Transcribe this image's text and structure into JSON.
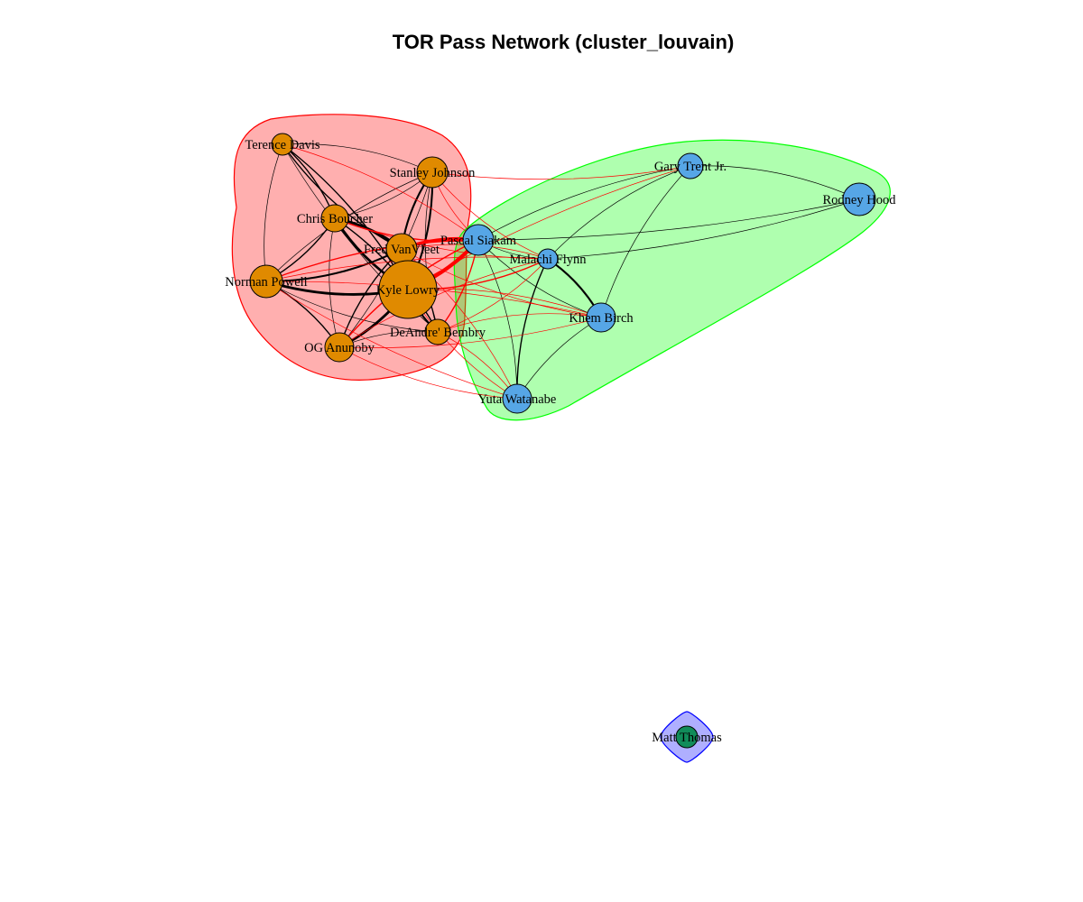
{
  "title": "TOR Pass Network (cluster_louvain)",
  "colors": {
    "group_fills": [
      "#FF000050",
      "#00FF0050",
      "#0000FF50"
    ],
    "group_borders": [
      "#FF0000",
      "#00FF00",
      "#0000FF"
    ],
    "node_fills": [
      "#E08A00",
      "#56A6E6",
      "#118C5A"
    ],
    "within_edge": "#000000",
    "cross_edge": "#FF0000"
  },
  "nodes": [
    {
      "id": "davis",
      "label": "Terence Davis",
      "group": 0
    },
    {
      "id": "johnson",
      "label": "Stanley Johnson",
      "group": 0
    },
    {
      "id": "boucher",
      "label": "Chris Boucher",
      "group": 0
    },
    {
      "id": "vanvleet",
      "label": "Fred VanVleet",
      "group": 0
    },
    {
      "id": "powell",
      "label": "Norman Powell",
      "group": 0
    },
    {
      "id": "lowry",
      "label": "Kyle Lowry",
      "group": 0
    },
    {
      "id": "anunoby",
      "label": "OG Anunoby",
      "group": 0
    },
    {
      "id": "bembry",
      "label": "DeAndre' Bembry",
      "group": 0
    },
    {
      "id": "siakam",
      "label": "Pascal Siakam",
      "group": 1
    },
    {
      "id": "flynn",
      "label": "Malachi Flynn",
      "group": 1
    },
    {
      "id": "trent",
      "label": "Gary Trent Jr.",
      "group": 1
    },
    {
      "id": "hood",
      "label": "Rodney Hood",
      "group": 1
    },
    {
      "id": "birch",
      "label": "Khem Birch",
      "group": 1
    },
    {
      "id": "watanabe",
      "label": "Yuta Watanabe",
      "group": 1
    },
    {
      "id": "thomas",
      "label": "Matt Thomas",
      "group": 2
    }
  ],
  "edges": [
    [
      "davis",
      "boucher",
      2
    ],
    [
      "davis",
      "vanvleet",
      2
    ],
    [
      "davis",
      "lowry",
      2
    ],
    [
      "davis",
      "powell",
      1
    ],
    [
      "davis",
      "johnson",
      1
    ],
    [
      "davis",
      "bembry",
      1
    ],
    [
      "johnson",
      "boucher",
      1
    ],
    [
      "johnson",
      "vanvleet",
      3
    ],
    [
      "johnson",
      "lowry",
      3
    ],
    [
      "johnson",
      "bembry",
      1
    ],
    [
      "johnson",
      "anunoby",
      1
    ],
    [
      "johnson",
      "powell",
      1
    ],
    [
      "boucher",
      "vanvleet",
      4
    ],
    [
      "boucher",
      "lowry",
      4
    ],
    [
      "boucher",
      "powell",
      2
    ],
    [
      "boucher",
      "anunoby",
      1
    ],
    [
      "boucher",
      "bembry",
      2
    ],
    [
      "vanvleet",
      "lowry",
      5
    ],
    [
      "vanvleet",
      "powell",
      3
    ],
    [
      "vanvleet",
      "anunoby",
      2
    ],
    [
      "vanvleet",
      "bembry",
      2
    ],
    [
      "powell",
      "lowry",
      4
    ],
    [
      "powell",
      "anunoby",
      2
    ],
    [
      "powell",
      "bembry",
      1
    ],
    [
      "lowry",
      "anunoby",
      4
    ],
    [
      "lowry",
      "bembry",
      3
    ],
    [
      "anunoby",
      "bembry",
      1
    ],
    [
      "siakam",
      "flynn",
      1
    ],
    [
      "siakam",
      "trent",
      1
    ],
    [
      "siakam",
      "birch",
      1
    ],
    [
      "siakam",
      "watanabe",
      1
    ],
    [
      "siakam",
      "hood",
      1
    ],
    [
      "flynn",
      "trent",
      1
    ],
    [
      "flynn",
      "hood",
      1
    ],
    [
      "flynn",
      "birch",
      3
    ],
    [
      "flynn",
      "watanabe",
      2
    ],
    [
      "trent",
      "hood",
      1
    ],
    [
      "trent",
      "birch",
      1
    ],
    [
      "watanabe",
      "birch",
      1
    ],
    [
      "lowry",
      "siakam",
      6
    ],
    [
      "vanvleet",
      "siakam",
      5
    ],
    [
      "boucher",
      "siakam",
      2
    ],
    [
      "powell",
      "siakam",
      2
    ],
    [
      "johnson",
      "siakam",
      1
    ],
    [
      "anunoby",
      "siakam",
      2
    ],
    [
      "bembry",
      "siakam",
      2
    ],
    [
      "davis",
      "siakam",
      1
    ],
    [
      "lowry",
      "flynn",
      2
    ],
    [
      "vanvleet",
      "flynn",
      1
    ],
    [
      "boucher",
      "flynn",
      1
    ],
    [
      "powell",
      "flynn",
      1
    ],
    [
      "johnson",
      "flynn",
      1
    ],
    [
      "anunoby",
      "flynn",
      1
    ],
    [
      "bembry",
      "flynn",
      1
    ],
    [
      "lowry",
      "birch",
      1
    ],
    [
      "vanvleet",
      "birch",
      1
    ],
    [
      "powell",
      "birch",
      1
    ],
    [
      "anunoby",
      "birch",
      1
    ],
    [
      "bembry",
      "birch",
      1
    ],
    [
      "lowry",
      "watanabe",
      1
    ],
    [
      "vanvleet",
      "watanabe",
      1
    ],
    [
      "anunoby",
      "watanabe",
      1
    ],
    [
      "bembry",
      "watanabe",
      1
    ],
    [
      "powell",
      "watanabe",
      1
    ],
    [
      "lowry",
      "trent",
      1
    ],
    [
      "johnson",
      "trent",
      1
    ]
  ]
}
